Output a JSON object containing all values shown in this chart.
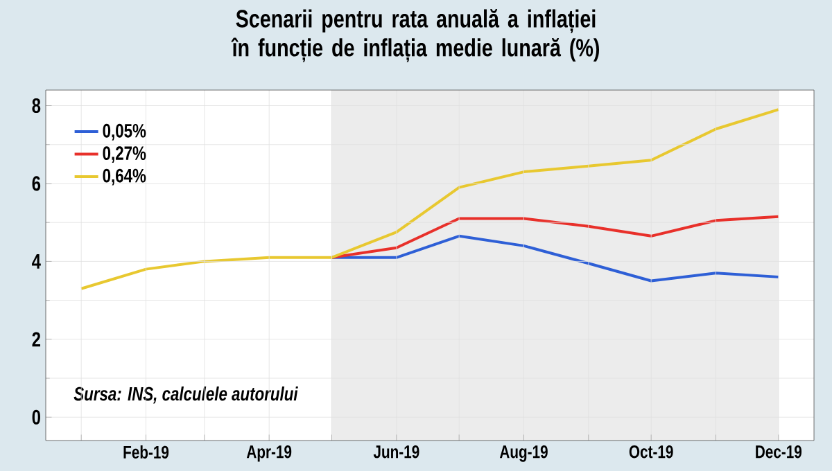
{
  "chart_data": {
    "type": "line",
    "title": "Scenarii pentru rata anuală a inflației  în funcție de inflația medie lunară (%)",
    "x": [
      "2019-01",
      "2019-02",
      "2019-03",
      "2019-04",
      "2019-05",
      "2019-06",
      "2019-07",
      "2019-08",
      "2019-09",
      "2019-10",
      "2019-11",
      "2019-12"
    ],
    "series": [
      {
        "name": "0,05%",
        "color": "#2e5fd6",
        "values": [
          null,
          null,
          null,
          null,
          4.1,
          4.1,
          4.65,
          4.4,
          3.95,
          3.5,
          3.7,
          3.6
        ]
      },
      {
        "name": "0,27%",
        "color": "#e8302a",
        "values": [
          null,
          null,
          null,
          null,
          4.1,
          4.35,
          5.1,
          5.1,
          4.9,
          4.65,
          5.05,
          5.15
        ]
      },
      {
        "name": "0,64%",
        "color": "#e8c830",
        "values": [
          3.3,
          3.8,
          4.0,
          4.1,
          4.1,
          4.75,
          5.9,
          6.3,
          6.45,
          6.6,
          7.4,
          7.9
        ]
      }
    ],
    "xlim": [
      "2018-12-15",
      "2019-12-18"
    ],
    "xticks": [
      {
        "value": "2019-01",
        "label": null
      },
      {
        "value": "2019-02",
        "label": "Feb-19"
      },
      {
        "value": "2019-03",
        "label": null
      },
      {
        "value": "2019-04",
        "label": "Apr-19"
      },
      {
        "value": "2019-05",
        "label": null
      },
      {
        "value": "2019-06",
        "label": "Jun-19"
      },
      {
        "value": "2019-07",
        "label": null
      },
      {
        "value": "2019-08",
        "label": "Aug-19"
      },
      {
        "value": "2019-09",
        "label": null
      },
      {
        "value": "2019-10",
        "label": "Oct-19"
      },
      {
        "value": "2019-11",
        "label": null
      },
      {
        "value": "2019-12",
        "label": "Dec-19"
      }
    ],
    "ylim": [
      -0.6,
      8.4
    ],
    "yticks": [
      0,
      2,
      4,
      6,
      8
    ],
    "bands": [
      {
        "axis": "x",
        "from": "2019-05",
        "to": "2019-12",
        "color": "#ececec"
      }
    ],
    "grid": true,
    "legend": "top left",
    "line_style": "solid",
    "marker": "none",
    "annotations": [
      "Sursa: INS, calculele autorului"
    ]
  }
}
